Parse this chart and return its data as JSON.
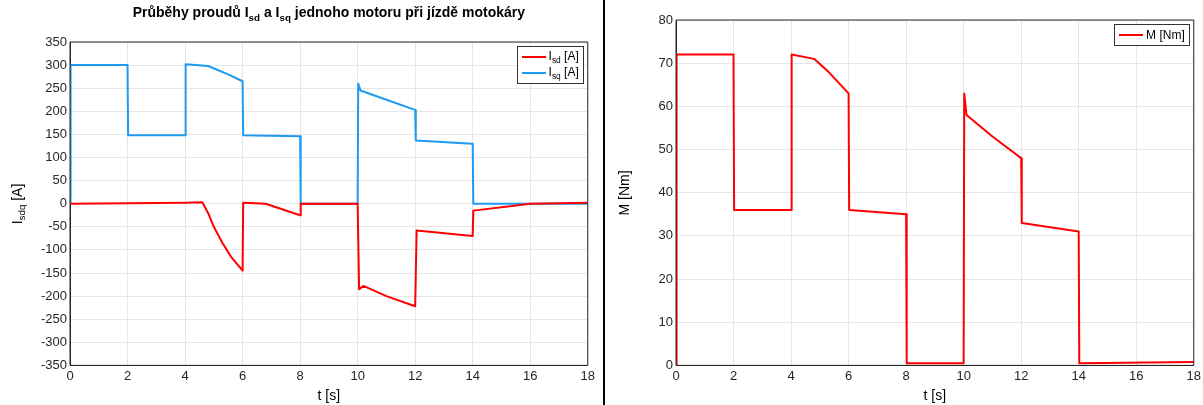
{
  "chart_data": [
    {
      "type": "line",
      "title": "Průběhy proudů I$_{sd}$ a I$_{sq}$ jednoho motoru při jízdě motokáry",
      "xlabel": "t [s]",
      "ylabel": "I$_{sdq}$ [A]",
      "xlim": [
        0,
        18
      ],
      "xticks": [
        0,
        2,
        4,
        6,
        8,
        10,
        12,
        14,
        16,
        18
      ],
      "ylim": [
        -350,
        350
      ],
      "yticks": [
        -350,
        -300,
        -250,
        -200,
        -150,
        -100,
        -50,
        0,
        50,
        100,
        150,
        200,
        250,
        300,
        350
      ],
      "grid": true,
      "legend": "top right",
      "marker": "none",
      "line_style": "solid",
      "series": [
        {
          "name": "I$_{sd}$ [A]",
          "color": "#ff0000",
          "x": [
            0,
            2,
            4,
            4.6,
            4.8,
            5,
            5.3,
            5.6,
            6,
            6.02,
            6.8,
            8,
            8.02,
            10,
            10.05,
            10.2,
            11,
            12,
            12.05,
            14,
            14.02,
            16,
            18
          ],
          "values": [
            0,
            1,
            2,
            3,
            -20,
            -50,
            -85,
            -115,
            -145,
            2,
            0,
            -25,
            0,
            0,
            -185,
            -178,
            -200,
            -222,
            -58,
            -70,
            -15,
            0,
            2
          ]
        },
        {
          "name": "I$_{sq}$ [A]",
          "color": "#1e9bf0",
          "x": [
            0,
            0.02,
            2,
            2.02,
            4,
            4.02,
            4.8,
            5.5,
            6,
            6.02,
            8,
            8.02,
            10,
            10.02,
            10.1,
            11,
            12,
            12.02,
            14,
            14.02,
            18
          ],
          "values": [
            0,
            300,
            300,
            148,
            148,
            302,
            298,
            280,
            265,
            148,
            146,
            0,
            0,
            260,
            245,
            225,
            203,
            137,
            130,
            0,
            0
          ]
        }
      ]
    },
    {
      "type": "line",
      "xlabel": "t [s]",
      "ylabel": "M [Nm]",
      "xlim": [
        0,
        18
      ],
      "xticks": [
        0,
        2,
        4,
        6,
        8,
        10,
        12,
        14,
        16,
        18
      ],
      "ylim": [
        0,
        80
      ],
      "yticks": [
        0,
        10,
        20,
        30,
        40,
        50,
        60,
        70,
        80
      ],
      "grid": true,
      "legend": "top right",
      "marker": "none",
      "line_style": "solid",
      "series": [
        {
          "name": "M [Nm]",
          "color": "#ff0000",
          "x": [
            0,
            0.02,
            2,
            2.02,
            4,
            4.02,
            4.8,
            5.3,
            6,
            6.02,
            8,
            8.02,
            10,
            10.02,
            10.1,
            11,
            12,
            12.02,
            14,
            14.02,
            18
          ],
          "values": [
            0,
            72,
            72,
            36,
            36,
            72,
            71,
            68,
            63,
            36,
            35,
            0.5,
            0.5,
            63,
            58,
            53,
            48,
            33,
            31,
            0.5,
            0.8
          ]
        }
      ]
    }
  ]
}
